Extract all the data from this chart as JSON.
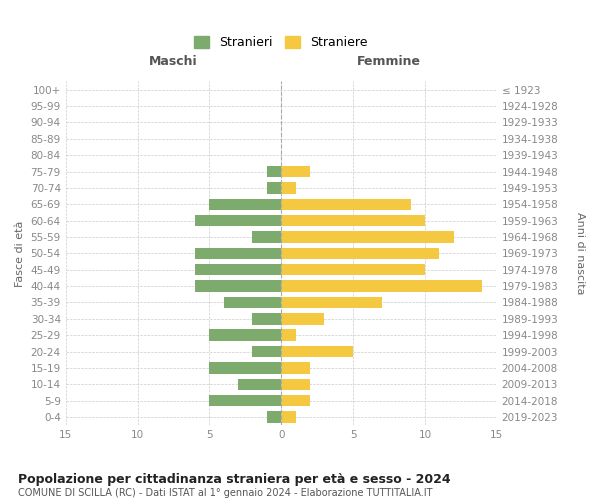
{
  "age_groups": [
    "0-4",
    "5-9",
    "10-14",
    "15-19",
    "20-24",
    "25-29",
    "30-34",
    "35-39",
    "40-44",
    "45-49",
    "50-54",
    "55-59",
    "60-64",
    "65-69",
    "70-74",
    "75-79",
    "80-84",
    "85-89",
    "90-94",
    "95-99",
    "100+"
  ],
  "birth_years": [
    "2019-2023",
    "2014-2018",
    "2009-2013",
    "2004-2008",
    "1999-2003",
    "1994-1998",
    "1989-1993",
    "1984-1988",
    "1979-1983",
    "1974-1978",
    "1969-1973",
    "1964-1968",
    "1959-1963",
    "1954-1958",
    "1949-1953",
    "1944-1948",
    "1939-1943",
    "1934-1938",
    "1929-1933",
    "1924-1928",
    "≤ 1923"
  ],
  "maschi": [
    1,
    5,
    3,
    5,
    2,
    5,
    2,
    4,
    6,
    6,
    6,
    2,
    6,
    5,
    1,
    1,
    0,
    0,
    0,
    0,
    0
  ],
  "femmine": [
    1,
    2,
    2,
    2,
    5,
    1,
    3,
    7,
    14,
    10,
    11,
    12,
    10,
    9,
    1,
    2,
    0,
    0,
    0,
    0,
    0
  ],
  "color_maschi": "#7dab6e",
  "color_femmine": "#f5c842",
  "xlim": 15,
  "title": "Popolazione per cittadinanza straniera per età e sesso - 2024",
  "subtitle": "COMUNE DI SCILLA (RC) - Dati ISTAT al 1° gennaio 2024 - Elaborazione TUTTITALIA.IT",
  "xlabel_left": "Maschi",
  "xlabel_right": "Femmine",
  "ylabel_left": "Fasce di età",
  "ylabel_right": "Anni di nascita",
  "legend_maschi": "Stranieri",
  "legend_femmine": "Straniere",
  "background_color": "#ffffff",
  "grid_color": "#cccccc",
  "tick_color": "#888888",
  "bar_height": 0.7
}
